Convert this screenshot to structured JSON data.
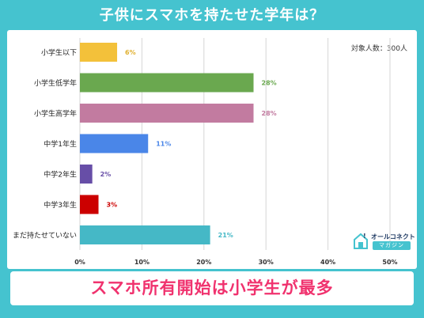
{
  "title": "子供にスマホを持たせた学年は？",
  "sample_note": "対象人数：300人",
  "brand": {
    "name": "オールコネクト",
    "sub": "マガジン"
  },
  "banner": "スマホ所有開始は小学生が最多",
  "chart_data": {
    "type": "bar",
    "orientation": "horizontal",
    "title": "子供にスマホを持たせた学年は？",
    "categories": [
      "小学生以下",
      "小学生低学年",
      "小学生高学年",
      "中学1年生",
      "中学2年生",
      "中学3年生",
      "まだ持たせていない"
    ],
    "values": [
      6,
      28,
      28,
      11,
      2,
      3,
      21
    ],
    "value_labels": [
      "6%",
      "28%",
      "28%",
      "11%",
      "2%",
      "3%",
      "21%"
    ],
    "colors": [
      "#f3c13a",
      "#6aa84f",
      "#c27ba0",
      "#4a86e8",
      "#674ea7",
      "#cc0000",
      "#45b8c6"
    ],
    "label_colors": [
      "#e0b030",
      "#6aa84f",
      "#c27ba0",
      "#4a86e8",
      "#674ea7",
      "#cc0000",
      "#45b8c6"
    ],
    "xlim": [
      0,
      50
    ],
    "x_ticks": [
      "0%",
      "10%",
      "20%",
      "30%",
      "40%",
      "50%"
    ],
    "grid": true,
    "legend": "none"
  }
}
